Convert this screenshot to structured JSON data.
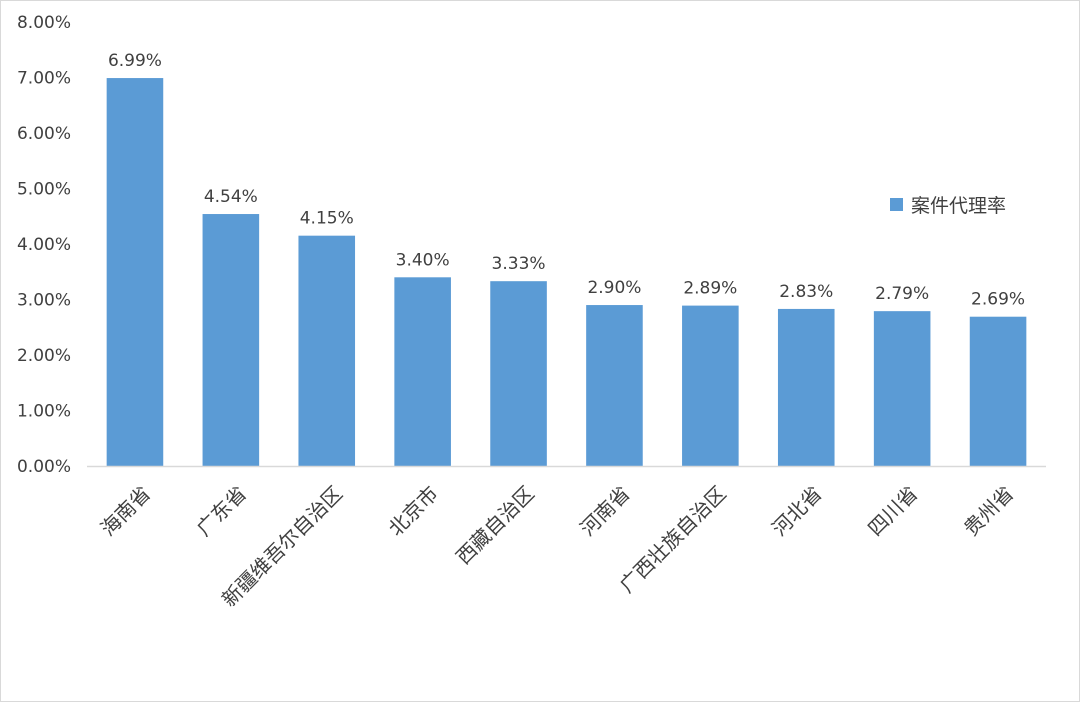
{
  "chart_data": {
    "type": "bar",
    "categories": [
      "海南省",
      "广东省",
      "新疆维吾尔自治区",
      "北京市",
      "西藏自治区",
      "河南省",
      "广西壮族自治区",
      "河北省",
      "四川省",
      "贵州省"
    ],
    "series": [
      {
        "name": "案件代理率",
        "values": [
          6.99,
          4.54,
          4.15,
          3.4,
          3.33,
          2.9,
          2.89,
          2.83,
          2.79,
          2.69
        ],
        "data_labels": [
          "6.99%",
          "4.54%",
          "4.15%",
          "3.40%",
          "3.33%",
          "2.90%",
          "2.89%",
          "2.83%",
          "2.79%",
          "2.69%"
        ],
        "color": "#5b9bd5"
      }
    ],
    "ylim": [
      0,
      8
    ],
    "y_ticks": [
      0,
      1,
      2,
      3,
      4,
      5,
      6,
      7,
      8
    ],
    "y_tick_labels": [
      "0.00%",
      "1.00%",
      "2.00%",
      "3.00%",
      "4.00%",
      "5.00%",
      "6.00%",
      "7.00%",
      "8.00%"
    ],
    "grid": false,
    "legend": {
      "position": "right",
      "entries": [
        "案件代理率"
      ]
    },
    "colors": {
      "bar": "#5b9bd5",
      "axis": "#d9d9d9",
      "text": "#404040"
    }
  }
}
